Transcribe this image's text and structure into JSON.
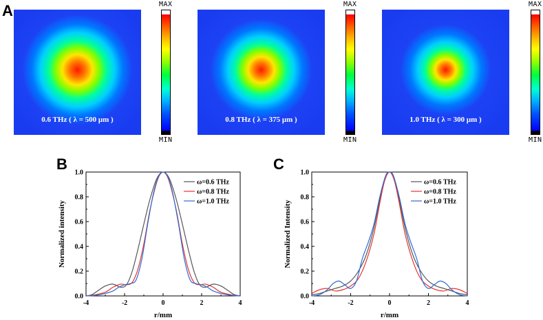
{
  "panels": {
    "a": "A",
    "b": "B",
    "c": "C"
  },
  "heatmaps": [
    {
      "label": "0.6 THz ( λ = 500 μm )",
      "cb_max": "MAX",
      "cb_min": "MIN"
    },
    {
      "label": "0.8 THz ( λ = 375 μm )",
      "cb_max": "MAX",
      "cb_min": "MIN"
    },
    {
      "label": "1.0 THz ( λ = 300 μm )",
      "cb_max": "MAX",
      "cb_min": "MIN"
    }
  ],
  "colors": {
    "s06": "#555555",
    "s08": "#e8332e",
    "s10": "#2a6bd6",
    "field": "#1536ee"
  },
  "chart_data": [
    {
      "panel": "B",
      "type": "line",
      "xlabel": "r/mm",
      "ylabel": "Normalized intensity",
      "xlim": [
        -4,
        4
      ],
      "ylim": [
        0,
        1.0
      ],
      "xticks": [
        "-4",
        "-2",
        "0",
        "2",
        "4"
      ],
      "yticks": [
        "0.0",
        "0.2",
        "0.4",
        "0.6",
        "0.8",
        "1.0"
      ],
      "legend_position": "top-right",
      "series": [
        {
          "name": "ω=0.6 THz",
          "color": "#555555",
          "points": [
            [
              -4,
              0.0
            ],
            [
              -3.7,
              0.01
            ],
            [
              -3.4,
              0.04
            ],
            [
              -3.0,
              0.08
            ],
            [
              -2.6,
              0.095
            ],
            [
              -2.2,
              0.07
            ],
            [
              -1.9,
              0.09
            ],
            [
              -1.6,
              0.2
            ],
            [
              -1.3,
              0.38
            ],
            [
              -1.0,
              0.58
            ],
            [
              -0.7,
              0.77
            ],
            [
              -0.4,
              0.92
            ],
            [
              -0.2,
              0.98
            ],
            [
              0,
              1.0
            ],
            [
              0.2,
              0.98
            ],
            [
              0.4,
              0.92
            ],
            [
              0.7,
              0.77
            ],
            [
              1.0,
              0.58
            ],
            [
              1.3,
              0.38
            ],
            [
              1.6,
              0.2
            ],
            [
              1.9,
              0.09
            ],
            [
              2.2,
              0.07
            ],
            [
              2.6,
              0.095
            ],
            [
              3.0,
              0.08
            ],
            [
              3.4,
              0.04
            ],
            [
              3.7,
              0.01
            ],
            [
              4,
              0.0
            ]
          ]
        },
        {
          "name": "ω=0.8 THz",
          "color": "#e8332e",
          "points": [
            [
              -4,
              0.0
            ],
            [
              -3.5,
              0.01
            ],
            [
              -3.0,
              0.03
            ],
            [
              -2.6,
              0.07
            ],
            [
              -2.2,
              0.095
            ],
            [
              -1.9,
              0.09
            ],
            [
              -1.6,
              0.11
            ],
            [
              -1.3,
              0.22
            ],
            [
              -1.0,
              0.42
            ],
            [
              -0.7,
              0.68
            ],
            [
              -0.4,
              0.88
            ],
            [
              -0.2,
              0.97
            ],
            [
              0,
              1.0
            ],
            [
              0.2,
              0.97
            ],
            [
              0.4,
              0.88
            ],
            [
              0.7,
              0.68
            ],
            [
              1.0,
              0.42
            ],
            [
              1.3,
              0.22
            ],
            [
              1.6,
              0.11
            ],
            [
              1.9,
              0.09
            ],
            [
              2.2,
              0.095
            ],
            [
              2.6,
              0.07
            ],
            [
              3.0,
              0.03
            ],
            [
              3.5,
              0.01
            ],
            [
              4,
              0.0
            ]
          ]
        },
        {
          "name": "ω=1.0 THz",
          "color": "#2a6bd6",
          "points": [
            [
              -4,
              0.0
            ],
            [
              -3.5,
              0.005
            ],
            [
              -3.0,
              0.02
            ],
            [
              -2.6,
              0.04
            ],
            [
              -2.3,
              0.07
            ],
            [
              -2.0,
              0.09
            ],
            [
              -1.7,
              0.1
            ],
            [
              -1.4,
              0.13
            ],
            [
              -1.1,
              0.3
            ],
            [
              -0.8,
              0.58
            ],
            [
              -0.5,
              0.83
            ],
            [
              -0.25,
              0.96
            ],
            [
              0,
              1.0
            ],
            [
              0.25,
              0.96
            ],
            [
              0.5,
              0.83
            ],
            [
              0.8,
              0.58
            ],
            [
              1.1,
              0.3
            ],
            [
              1.4,
              0.13
            ],
            [
              1.7,
              0.1
            ],
            [
              2.0,
              0.09
            ],
            [
              2.3,
              0.07
            ],
            [
              2.6,
              0.04
            ],
            [
              3.0,
              0.02
            ],
            [
              3.5,
              0.005
            ],
            [
              4,
              0.0
            ]
          ]
        }
      ]
    },
    {
      "panel": "C",
      "type": "line",
      "xlabel": "r/mm",
      "ylabel": "Normalized Intensity",
      "xlim": [
        -4,
        4
      ],
      "ylim": [
        0,
        1.0
      ],
      "xticks": [
        "-4",
        "-2",
        "0",
        "2",
        "4"
      ],
      "yticks": [
        "0.0",
        "0.2",
        "0.4",
        "0.6",
        "0.8",
        "1.0"
      ],
      "legend_position": "top-right",
      "series": [
        {
          "name": "ω=0.6 THz",
          "color": "#555555",
          "points": [
            [
              -4,
              0.01
            ],
            [
              -3.6,
              0.02
            ],
            [
              -3.2,
              0.04
            ],
            [
              -2.8,
              0.06
            ],
            [
              -2.4,
              0.08
            ],
            [
              -2.0,
              0.12
            ],
            [
              -1.6,
              0.2
            ],
            [
              -1.2,
              0.33
            ],
            [
              -0.8,
              0.55
            ],
            [
              -0.4,
              0.85
            ],
            [
              -0.15,
              0.98
            ],
            [
              0,
              1.0
            ],
            [
              0.15,
              0.98
            ],
            [
              0.4,
              0.85
            ],
            [
              0.8,
              0.55
            ],
            [
              1.2,
              0.33
            ],
            [
              1.6,
              0.2
            ],
            [
              2.0,
              0.12
            ],
            [
              2.4,
              0.08
            ],
            [
              2.8,
              0.06
            ],
            [
              3.2,
              0.04
            ],
            [
              3.6,
              0.02
            ],
            [
              4,
              0.01
            ]
          ]
        },
        {
          "name": "ω=0.8 THz",
          "color": "#e8332e",
          "points": [
            [
              -4,
              0.02
            ],
            [
              -3.6,
              0.05
            ],
            [
              -3.2,
              0.06
            ],
            [
              -2.8,
              0.04
            ],
            [
              -2.4,
              0.05
            ],
            [
              -2.0,
              0.08
            ],
            [
              -1.6,
              0.14
            ],
            [
              -1.2,
              0.28
            ],
            [
              -0.8,
              0.5
            ],
            [
              -0.5,
              0.75
            ],
            [
              -0.25,
              0.93
            ],
            [
              0,
              1.0
            ],
            [
              0.25,
              0.93
            ],
            [
              0.5,
              0.75
            ],
            [
              0.8,
              0.5
            ],
            [
              1.2,
              0.28
            ],
            [
              1.6,
              0.14
            ],
            [
              2.0,
              0.08
            ],
            [
              2.4,
              0.05
            ],
            [
              2.8,
              0.04
            ],
            [
              3.2,
              0.06
            ],
            [
              3.6,
              0.05
            ],
            [
              4,
              0.02
            ]
          ]
        },
        {
          "name": "ω=1.0 THz",
          "color": "#2a6bd6",
          "points": [
            [
              -4,
              0.0
            ],
            [
              -3.6,
              0.01
            ],
            [
              -3.2,
              0.05
            ],
            [
              -2.9,
              0.1
            ],
            [
              -2.6,
              0.12
            ],
            [
              -2.3,
              0.09
            ],
            [
              -2.0,
              0.06
            ],
            [
              -1.7,
              0.12
            ],
            [
              -1.4,
              0.3
            ],
            [
              -1.1,
              0.43
            ],
            [
              -0.8,
              0.58
            ],
            [
              -0.5,
              0.8
            ],
            [
              -0.2,
              0.97
            ],
            [
              0,
              1.0
            ],
            [
              0.2,
              0.97
            ],
            [
              0.5,
              0.8
            ],
            [
              0.8,
              0.58
            ],
            [
              1.1,
              0.43
            ],
            [
              1.4,
              0.3
            ],
            [
              1.7,
              0.12
            ],
            [
              2.0,
              0.06
            ],
            [
              2.3,
              0.09
            ],
            [
              2.6,
              0.12
            ],
            [
              2.9,
              0.1
            ],
            [
              3.2,
              0.05
            ],
            [
              3.6,
              0.01
            ],
            [
              4,
              0.0
            ]
          ]
        }
      ]
    }
  ]
}
